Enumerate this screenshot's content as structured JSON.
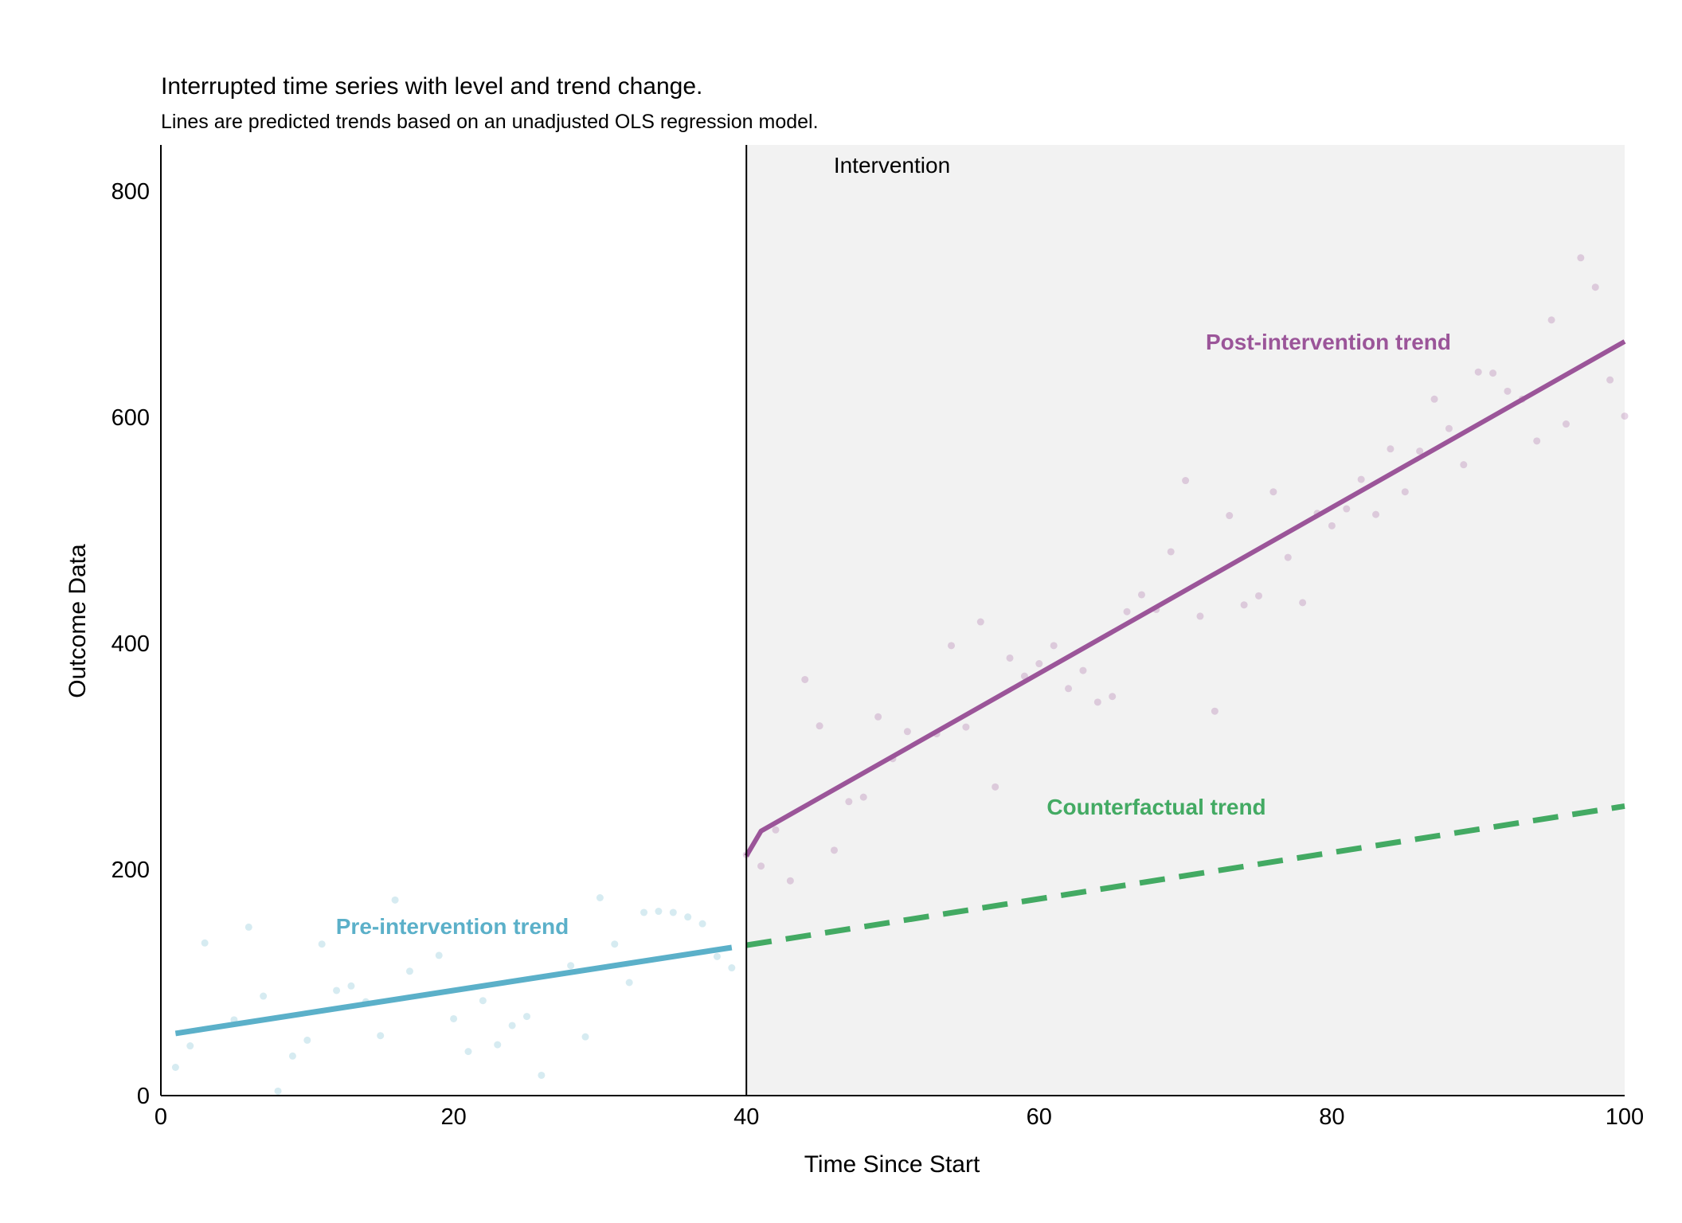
{
  "chart_data": {
    "type": "line",
    "title": "Interrupted time series with level and trend change.",
    "subtitle": "Lines are predicted trends based on an unadjusted OLS regression model.",
    "xlabel": "Time Since Start",
    "ylabel": "Outcome Data",
    "xlim": [
      0,
      100
    ],
    "ylim": [
      0,
      840
    ],
    "x_ticks": [
      0,
      20,
      40,
      60,
      80,
      100
    ],
    "y_ticks": [
      0,
      200,
      400,
      600,
      800
    ],
    "intervention": {
      "x": 40,
      "label": "Intervention",
      "shaded_region": [
        40,
        100
      ]
    },
    "grid": false,
    "colors": {
      "pre": "#5bb0c9",
      "post": "#9b5599",
      "counterfactual": "#43aa63",
      "shade": "#f2f2f2"
    },
    "series": [
      {
        "name": "Pre-intervention trend",
        "kind": "line",
        "x": [
          1,
          39
        ],
        "y": [
          55,
          131
        ]
      },
      {
        "name": "Post-intervention trend",
        "kind": "line",
        "x": [
          40,
          41,
          100
        ],
        "y": [
          212,
          234,
          667
        ]
      },
      {
        "name": "Counterfactual trend",
        "kind": "dashed-line",
        "x": [
          40,
          100
        ],
        "y": [
          133,
          256
        ]
      },
      {
        "name": "Pre-intervention observations",
        "kind": "points",
        "x": [
          1,
          2,
          3,
          5,
          6,
          7,
          8,
          9,
          10,
          11,
          12,
          13,
          14,
          15,
          16,
          17,
          19,
          20,
          21,
          22,
          23,
          24,
          25,
          26,
          28,
          29,
          30,
          31,
          32,
          33,
          34,
          35,
          36,
          37,
          38,
          39
        ],
        "y": [
          25,
          44,
          135,
          67,
          149,
          88,
          4,
          35,
          49,
          134,
          93,
          97,
          83,
          53,
          173,
          110,
          124,
          68,
          39,
          84,
          45,
          62,
          70,
          18,
          115,
          52,
          175,
          134,
          100,
          162,
          163,
          162,
          158,
          152,
          123,
          113
        ]
      },
      {
        "name": "Post-intervention observations",
        "kind": "points",
        "x": [
          40,
          41,
          42,
          43,
          44,
          45,
          46,
          47,
          48,
          49,
          50,
          51,
          53,
          54,
          55,
          56,
          57,
          58,
          59,
          60,
          61,
          62,
          63,
          64,
          65,
          66,
          67,
          68,
          69,
          70,
          71,
          72,
          73,
          74,
          75,
          76,
          77,
          78,
          79,
          80,
          81,
          82,
          83,
          84,
          85,
          86,
          87,
          88,
          89,
          90,
          91,
          92,
          93,
          94,
          95,
          96,
          97,
          98,
          99,
          100
        ],
        "y": [
          213,
          203,
          235,
          190,
          368,
          327,
          217,
          260,
          264,
          335,
          298,
          322,
          320,
          398,
          326,
          419,
          273,
          387,
          371,
          382,
          398,
          360,
          376,
          348,
          353,
          428,
          443,
          430,
          481,
          544,
          424,
          340,
          513,
          434,
          442,
          534,
          476,
          436,
          515,
          504,
          519,
          545,
          514,
          572,
          534,
          570,
          616,
          590,
          558,
          640,
          639,
          623,
          616,
          579,
          686,
          594,
          741,
          715,
          633,
          601
        ]
      }
    ],
    "annotations": [
      {
        "text": "Pre-intervention trend",
        "color": "#5bb0c9"
      },
      {
        "text": "Post-intervention trend",
        "color": "#9b5599"
      },
      {
        "text": "Counterfactual trend",
        "color": "#43aa63"
      }
    ]
  }
}
